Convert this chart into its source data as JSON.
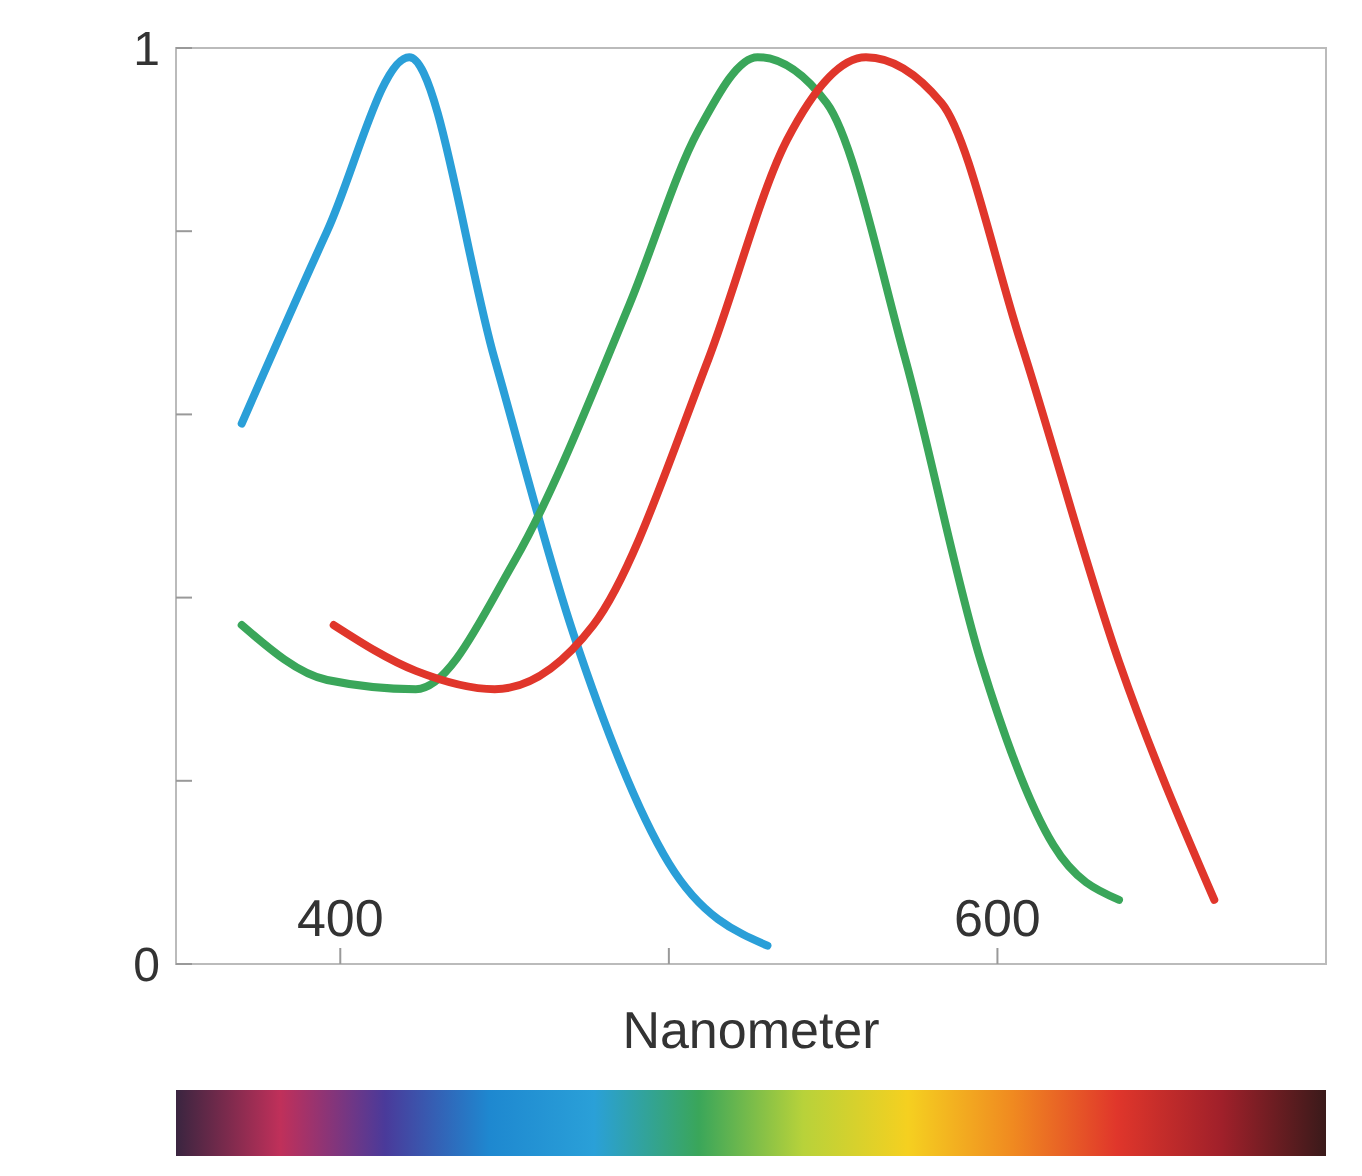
{
  "chart_data": {
    "type": "line",
    "xlabel": "Nanometer",
    "xlim": [
      350,
      700
    ],
    "ylim": [
      0,
      1
    ],
    "xticks": [
      400,
      {
        "value": 500,
        "label": null
      },
      600
    ],
    "yticks": [
      0,
      {
        "value": 0.2,
        "label": null
      },
      {
        "value": 0.4,
        "label": null
      },
      {
        "value": 0.6,
        "label": null
      },
      {
        "value": 0.8,
        "label": null
      },
      1
    ],
    "grid": false,
    "marker": "none",
    "line_style": "solid",
    "series": [
      {
        "color": "#2a9fd8",
        "x": [
          370,
          396,
          421,
          447,
          471,
          500,
          530
        ],
        "values": [
          0.59,
          0.8,
          0.99,
          0.66,
          0.36,
          0.11,
          0.02
        ]
      },
      {
        "color": "#3aa65a",
        "x": [
          370,
          396,
          423,
          453,
          488,
          509,
          527,
          548,
          572,
          595,
          617,
          637
        ],
        "values": [
          0.37,
          0.31,
          0.3,
          0.44,
          0.72,
          0.91,
          0.99,
          0.94,
          0.66,
          0.33,
          0.13,
          0.07
        ]
      },
      {
        "color": "#e0362b",
        "x": [
          398,
          423,
          447,
          477,
          512,
          536,
          560,
          583,
          607,
          637,
          666
        ],
        "values": [
          0.37,
          0.32,
          0.3,
          0.37,
          0.66,
          0.9,
          0.99,
          0.94,
          0.68,
          0.33,
          0.07
        ]
      }
    ]
  }
}
